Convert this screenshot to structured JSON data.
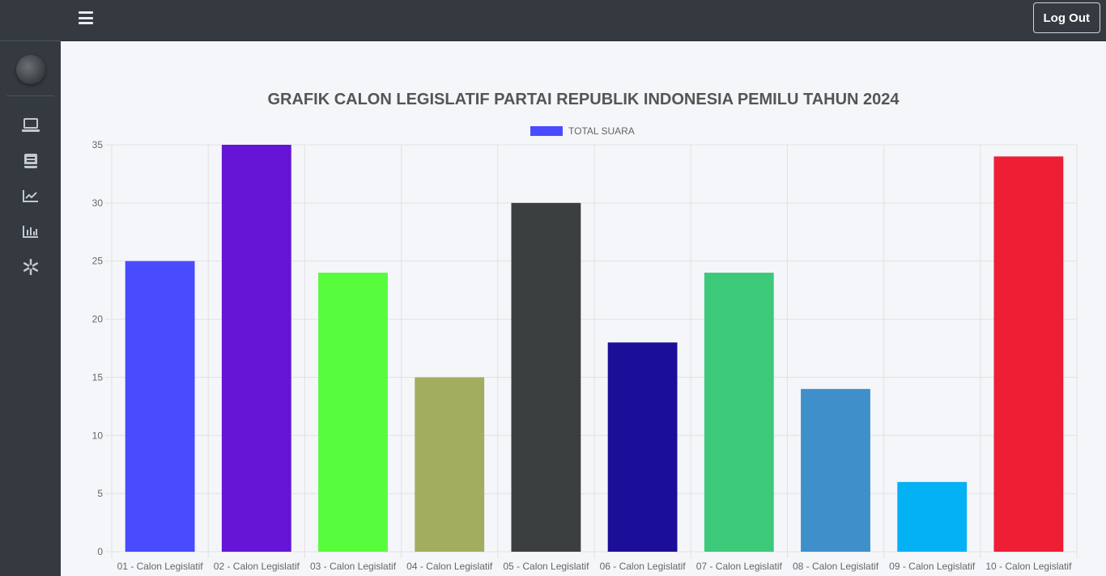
{
  "topbar": {
    "logout_label": "Log Out"
  },
  "colors": {
    "sidebar_bg": "#343a40",
    "content_bg": "#f4f6f9"
  },
  "sidebar": {
    "icons": [
      "laptop-icon",
      "book-icon",
      "line-chart-icon",
      "bar-chart-icon",
      "snowflake-icon"
    ]
  },
  "chart_data": {
    "type": "bar",
    "title": "GRAFIK CALON LEGISLATIF PARTAI REPUBLIK INDONESIA PEMILU TAHUN 2024",
    "legend": {
      "position": "top",
      "label": "TOTAL SUARA",
      "color": "#4a4bff"
    },
    "categories": [
      "01 - Calon Legislatif",
      "02 - Calon Legislatif",
      "03 - Calon Legislatif",
      "04 - Calon Legislatif",
      "05 - Calon Legislatif",
      "06 - Calon Legislatif",
      "07 - Calon Legislatif",
      "08 - Calon Legislatif",
      "09 - Calon Legislatif",
      "10 - Calon Legislatif"
    ],
    "series": [
      {
        "name": "TOTAL SUARA",
        "values": [
          25,
          35,
          24,
          15,
          30,
          18,
          24,
          14,
          6,
          34
        ],
        "colors": [
          "#4a4bff",
          "#6614d6",
          "#57fc3c",
          "#a2ad5e",
          "#3c3f3f",
          "#1b0f99",
          "#3cc97a",
          "#3f8fca",
          "#04b1f5",
          "#ee1e35"
        ]
      }
    ],
    "yticks": [
      0,
      5,
      10,
      15,
      20,
      25,
      30,
      35
    ],
    "ylim": [
      0,
      35
    ],
    "grid": true
  }
}
